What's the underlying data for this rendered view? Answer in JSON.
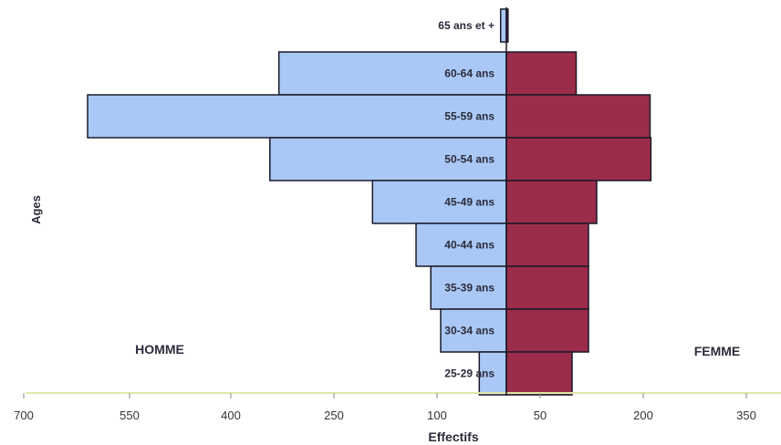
{
  "chart_data": {
    "type": "bar",
    "orientation": "horizontal",
    "layout": "population-pyramid",
    "title": "",
    "xlabel": "Effectifs",
    "ylabel": "Ages",
    "categories": [
      "65 ans et +",
      "60-64 ans",
      "55-59 ans",
      "50-54 ans",
      "45-49 ans",
      "40-44 ans",
      "35-39 ans",
      "30-34 ans",
      "25-29 ans"
    ],
    "series": [
      {
        "name": "HOMME",
        "side": "left",
        "color": "#a9c8f5",
        "values": [
          7,
          277,
          510,
          288,
          163,
          110,
          92,
          80,
          33
        ]
      },
      {
        "name": "FEMME",
        "side": "right",
        "color": "#9b2c4a",
        "values": [
          2,
          85,
          175,
          176,
          110,
          100,
          100,
          100,
          80
        ]
      }
    ],
    "x_ticks": [
      "700",
      "550",
      "400",
      "250",
      "100",
      "50",
      "200",
      "350"
    ],
    "grid": false,
    "legend": "none"
  }
}
